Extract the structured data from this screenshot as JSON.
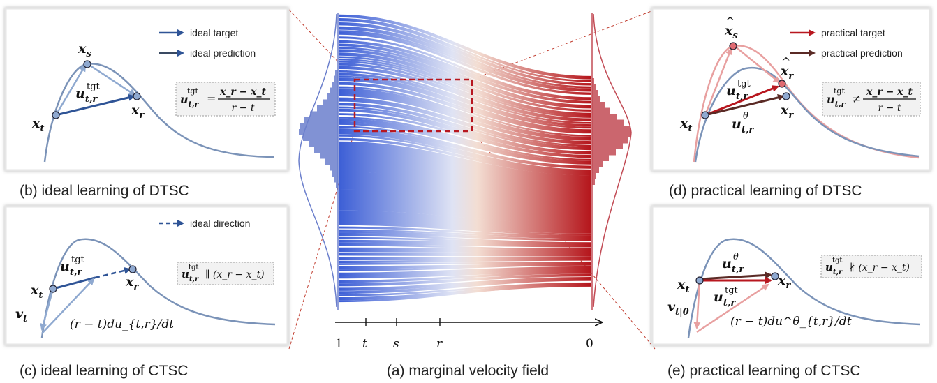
{
  "captions": {
    "a": "(a) marginal velocity field",
    "b": "(b) ideal learning of DTSC",
    "c": "(c) ideal learning of CTSC",
    "d": "(d) practical learning of DTSC",
    "e": "(e) practical learning of CTSC"
  },
  "legends": {
    "ideal_target": "ideal target",
    "ideal_prediction": "ideal prediction",
    "ideal_direction": "ideal direction",
    "practical_target": "practical target",
    "practical_prediction": "practical prediction"
  },
  "axis": {
    "ticks": [
      "1",
      "t",
      "s",
      "r",
      "0"
    ]
  },
  "math": {
    "x": "x",
    "u": "u",
    "v": "v",
    "sub_t": "t",
    "sub_s": "s",
    "sub_r": "r",
    "sub_tr": "t,r",
    "sub_t0": "t|0",
    "sup_tgt": "tgt",
    "sup_theta": "θ",
    "hat": "^",
    "eq_b_num": "x_r − x_t",
    "eq_d_num": "x_r − x_t",
    "eq_den": "r − t",
    "eq_b_rel": "=",
    "eq_d_rel": "≠",
    "eq_c": "∥ (x_r − x_t)",
    "eq_e": "∦ (x_r − x_t)",
    "ode_c": "(r − t)du_{t,r}/dt",
    "ode_e": "(r − t)du^θ_{t,r}/dt"
  },
  "colors": {
    "blue_dark": "#2f5496",
    "blue_light": "#8fa9d0",
    "curve": "#7b93b8",
    "red_dark": "#b8171f",
    "red_light": "#e8a0a0",
    "brown": "#5a2a25",
    "hist_blue": "#6b7fcc",
    "hist_red": "#c24b55"
  }
}
